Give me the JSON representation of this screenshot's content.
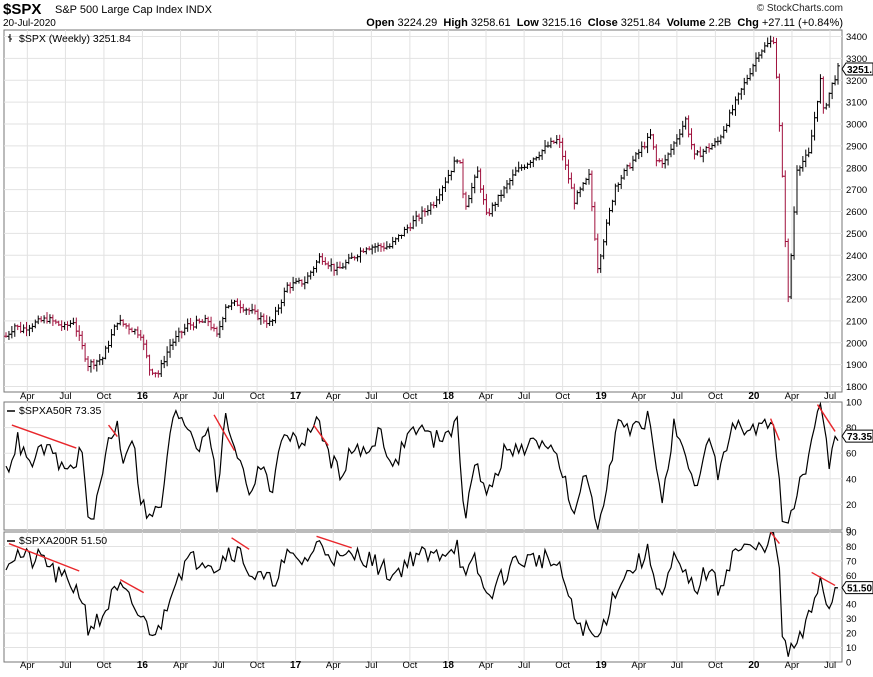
{
  "header": {
    "symbol": "$SPX",
    "name": "S&P 500 Large Cap Index INDX",
    "date": "20-Jul-2020",
    "brand": "© StockCharts.com",
    "open_label": "Open",
    "open": "3224.29",
    "high_label": "High",
    "high": "3258.61",
    "low_label": "Low",
    "low": "3215.16",
    "close_label": "Close",
    "close": "3251.84",
    "volume_label": "Volume",
    "volume": "2.2B",
    "chg_label": "Chg",
    "chg": "+27.11 (+0.84%)"
  },
  "chart_data": [
    {
      "type": "ohlc",
      "legend": "$SPX (Weekly) 3251.84",
      "last_value_label": "3251.",
      "x_range": [
        "2015-02-09",
        "2020-07-20"
      ],
      "x_ticks": [
        "Apr",
        "Jul",
        "Oct",
        "16",
        "Apr",
        "Jul",
        "Oct",
        "17",
        "Apr",
        "Jul",
        "Oct",
        "18",
        "Apr",
        "Jul",
        "Oct",
        "19",
        "Apr",
        "Jul",
        "Oct",
        "20",
        "Apr",
        "Jul"
      ],
      "ylim": [
        1775,
        3430
      ],
      "y_ticks": [
        1800,
        1900,
        2000,
        2100,
        2200,
        2300,
        2400,
        2500,
        2600,
        2700,
        2800,
        2900,
        3000,
        3100,
        3200,
        3300,
        3400
      ],
      "colors": {
        "up": "#000000",
        "down": "#a0103c"
      },
      "keypoints": [
        [
          "2015-02-09",
          2030
        ],
        [
          "2015-03-02",
          2080
        ],
        [
          "2015-03-16",
          2060
        ],
        [
          "2015-04-20",
          2090
        ],
        [
          "2015-05-18",
          2110
        ],
        [
          "2015-06-29",
          2070
        ],
        [
          "2015-07-20",
          2100
        ],
        [
          "2015-08-24",
          1900
        ],
        [
          "2015-09-28",
          1930
        ],
        [
          "2015-11-02",
          2100
        ],
        [
          "2015-12-28",
          2040
        ],
        [
          "2016-01-18",
          1880
        ],
        [
          "2016-02-08",
          1860
        ],
        [
          "2016-03-07",
          1990
        ],
        [
          "2016-04-18",
          2080
        ],
        [
          "2016-06-06",
          2100
        ],
        [
          "2016-06-27",
          2030
        ],
        [
          "2016-07-18",
          2170
        ],
        [
          "2016-08-15",
          2180
        ],
        [
          "2016-11-04",
          2085
        ],
        [
          "2016-12-12",
          2260
        ],
        [
          "2017-01-23",
          2280
        ],
        [
          "2017-03-01",
          2395
        ],
        [
          "2017-04-10",
          2330
        ],
        [
          "2017-06-19",
          2440
        ],
        [
          "2017-08-14",
          2440
        ],
        [
          "2017-10-02",
          2540
        ],
        [
          "2017-11-27",
          2640
        ],
        [
          "2018-01-26",
          2860
        ],
        [
          "2018-02-09",
          2620
        ],
        [
          "2018-03-12",
          2780
        ],
        [
          "2018-04-02",
          2580
        ],
        [
          "2018-06-11",
          2780
        ],
        [
          "2018-08-27",
          2900
        ],
        [
          "2018-09-21",
          2930
        ],
        [
          "2018-10-29",
          2650
        ],
        [
          "2018-12-03",
          2760
        ],
        [
          "2018-12-24",
          2350
        ],
        [
          "2019-02-04",
          2720
        ],
        [
          "2019-04-29",
          2945
        ],
        [
          "2019-05-13",
          2830
        ],
        [
          "2019-06-03",
          2830
        ],
        [
          "2019-07-22",
          3020
        ],
        [
          "2019-08-12",
          2850
        ],
        [
          "2019-10-07",
          2920
        ],
        [
          "2020-01-13",
          3330
        ],
        [
          "2020-02-19",
          3390
        ],
        [
          "2020-03-09",
          2750
        ],
        [
          "2020-03-23",
          2200
        ],
        [
          "2020-04-13",
          2800
        ],
        [
          "2020-05-11",
          2860
        ],
        [
          "2020-06-08",
          3200
        ],
        [
          "2020-06-15",
          3060
        ],
        [
          "2020-07-06",
          3180
        ],
        [
          "2020-07-20",
          3251.84
        ]
      ]
    },
    {
      "type": "line",
      "legend": "$SPXA50R 73.35",
      "last_value_label": "73.35",
      "ylim": [
        0,
        100
      ],
      "y_ticks": [
        0,
        20,
        40,
        60,
        80,
        100
      ],
      "keypoints": [
        [
          "2015-02-09",
          45
        ],
        [
          "2015-03-09",
          70
        ],
        [
          "2015-04-06",
          50
        ],
        [
          "2015-05-11",
          65
        ],
        [
          "2015-06-08",
          55
        ],
        [
          "2015-07-06",
          45
        ],
        [
          "2015-08-10",
          62
        ],
        [
          "2015-08-24",
          5
        ],
        [
          "2015-09-14",
          20
        ],
        [
          "2015-10-12",
          70
        ],
        [
          "2015-11-02",
          82
        ],
        [
          "2015-11-16",
          55
        ],
        [
          "2015-12-07",
          75
        ],
        [
          "2015-12-28",
          25
        ],
        [
          "2016-01-18",
          8
        ],
        [
          "2016-02-15",
          20
        ],
        [
          "2016-03-14",
          88
        ],
        [
          "2016-04-04",
          90
        ],
        [
          "2016-05-16",
          65
        ],
        [
          "2016-06-06",
          85
        ],
        [
          "2016-06-27",
          30
        ],
        [
          "2016-07-18",
          88
        ],
        [
          "2016-08-15",
          60
        ],
        [
          "2016-09-12",
          30
        ],
        [
          "2016-10-17",
          55
        ],
        [
          "2016-11-04",
          25
        ],
        [
          "2016-12-05",
          80
        ],
        [
          "2017-01-09",
          65
        ],
        [
          "2017-02-20",
          85
        ],
        [
          "2017-03-27",
          55
        ],
        [
          "2017-04-17",
          45
        ],
        [
          "2017-05-15",
          62
        ],
        [
          "2017-06-19",
          60
        ],
        [
          "2017-07-24",
          80
        ],
        [
          "2017-08-21",
          45
        ],
        [
          "2017-09-25",
          75
        ],
        [
          "2017-10-23",
          80
        ],
        [
          "2017-11-27",
          70
        ],
        [
          "2018-01-22",
          82
        ],
        [
          "2018-02-09",
          10
        ],
        [
          "2018-03-05",
          55
        ],
        [
          "2018-04-02",
          25
        ],
        [
          "2018-05-14",
          60
        ],
        [
          "2018-07-09",
          65
        ],
        [
          "2018-08-27",
          70
        ],
        [
          "2018-10-01",
          45
        ],
        [
          "2018-10-29",
          8
        ],
        [
          "2018-11-26",
          45
        ],
        [
          "2018-12-24",
          2
        ],
        [
          "2019-02-11",
          85
        ],
        [
          "2019-03-11",
          75
        ],
        [
          "2019-04-22",
          88
        ],
        [
          "2019-05-27",
          25
        ],
        [
          "2019-06-24",
          80
        ],
        [
          "2019-08-12",
          30
        ],
        [
          "2019-09-16",
          70
        ],
        [
          "2019-10-07",
          45
        ],
        [
          "2019-11-11",
          80
        ],
        [
          "2020-01-13",
          78
        ],
        [
          "2020-02-14",
          85
        ],
        [
          "2020-02-28",
          55
        ],
        [
          "2020-03-09",
          10
        ],
        [
          "2020-03-23",
          1
        ],
        [
          "2020-04-13",
          30
        ],
        [
          "2020-05-11",
          55
        ],
        [
          "2020-06-08",
          96
        ],
        [
          "2020-06-29",
          50
        ],
        [
          "2020-07-13",
          80
        ],
        [
          "2020-07-20",
          73.35
        ]
      ],
      "trend_lines": [
        [
          [
            "2015-02-23",
            82
          ],
          [
            "2015-07-27",
            64
          ]
        ],
        [
          [
            "2015-10-12",
            82
          ],
          [
            "2015-11-02",
            73
          ]
        ],
        [
          [
            "2016-06-20",
            90
          ],
          [
            "2016-08-08",
            62
          ]
        ],
        [
          [
            "2017-02-13",
            82
          ],
          [
            "2017-03-20",
            66
          ]
        ],
        [
          [
            "2020-02-10",
            87
          ],
          [
            "2020-03-02",
            70
          ]
        ],
        [
          [
            "2020-06-01",
            98
          ],
          [
            "2020-07-13",
            77
          ]
        ]
      ]
    },
    {
      "type": "line",
      "legend": "$SPXA200R 51.50",
      "last_value_label": "51.50",
      "ylim": [
        0,
        90
      ],
      "y_ticks": [
        0,
        10,
        20,
        30,
        40,
        50,
        60,
        70,
        80,
        90
      ],
      "keypoints": [
        [
          "2015-02-09",
          70
        ],
        [
          "2015-03-09",
          75
        ],
        [
          "2015-04-13",
          70
        ],
        [
          "2015-05-11",
          72
        ],
        [
          "2015-06-08",
          60
        ],
        [
          "2015-07-13",
          55
        ],
        [
          "2015-08-10",
          45
        ],
        [
          "2015-08-24",
          25
        ],
        [
          "2015-09-21",
          28
        ],
        [
          "2015-10-19",
          45
        ],
        [
          "2015-11-09",
          50
        ],
        [
          "2015-12-07",
          40
        ],
        [
          "2016-01-11",
          25
        ],
        [
          "2016-02-08",
          20
        ],
        [
          "2016-03-14",
          55
        ],
        [
          "2016-04-18",
          70
        ],
        [
          "2016-06-06",
          72
        ],
        [
          "2016-06-27",
          65
        ],
        [
          "2016-07-25",
          78
        ],
        [
          "2016-08-22",
          75
        ],
        [
          "2016-09-19",
          60
        ],
        [
          "2016-11-04",
          55
        ],
        [
          "2016-12-12",
          72
        ],
        [
          "2017-01-23",
          70
        ],
        [
          "2017-02-27",
          82
        ],
        [
          "2017-04-17",
          70
        ],
        [
          "2017-06-05",
          75
        ],
        [
          "2017-08-21",
          60
        ],
        [
          "2017-10-16",
          75
        ],
        [
          "2017-11-20",
          72
        ],
        [
          "2018-01-22",
          82
        ],
        [
          "2018-02-09",
          55
        ],
        [
          "2018-03-05",
          70
        ],
        [
          "2018-04-02",
          45
        ],
        [
          "2018-06-11",
          70
        ],
        [
          "2018-08-27",
          72
        ],
        [
          "2018-10-01",
          60
        ],
        [
          "2018-10-29",
          30
        ],
        [
          "2018-12-24",
          15
        ],
        [
          "2019-02-11",
          55
        ],
        [
          "2019-04-22",
          75
        ],
        [
          "2019-05-27",
          45
        ],
        [
          "2019-06-24",
          70
        ],
        [
          "2019-08-12",
          50
        ],
        [
          "2019-09-16",
          65
        ],
        [
          "2019-10-07",
          50
        ],
        [
          "2019-11-18",
          78
        ],
        [
          "2020-01-13",
          78
        ],
        [
          "2020-02-14",
          88
        ],
        [
          "2020-02-28",
          75
        ],
        [
          "2020-03-09",
          20
        ],
        [
          "2020-03-23",
          5
        ],
        [
          "2020-04-20",
          15
        ],
        [
          "2020-05-18",
          35
        ],
        [
          "2020-06-08",
          60
        ],
        [
          "2020-06-29",
          35
        ],
        [
          "2020-07-13",
          52
        ],
        [
          "2020-07-20",
          51.5
        ]
      ],
      "trend_lines": [
        [
          [
            "2015-02-16",
            82
          ],
          [
            "2015-08-03",
            63
          ]
        ],
        [
          [
            "2015-11-09",
            57
          ],
          [
            "2016-01-04",
            48
          ]
        ],
        [
          [
            "2016-08-01",
            86
          ],
          [
            "2016-09-12",
            78
          ]
        ],
        [
          [
            "2017-02-20",
            87
          ],
          [
            "2017-05-15",
            79
          ]
        ],
        [
          [
            "2020-02-10",
            90
          ],
          [
            "2020-03-02",
            82
          ]
        ],
        [
          [
            "2020-05-18",
            62
          ],
          [
            "2020-07-13",
            53
          ]
        ]
      ]
    }
  ]
}
